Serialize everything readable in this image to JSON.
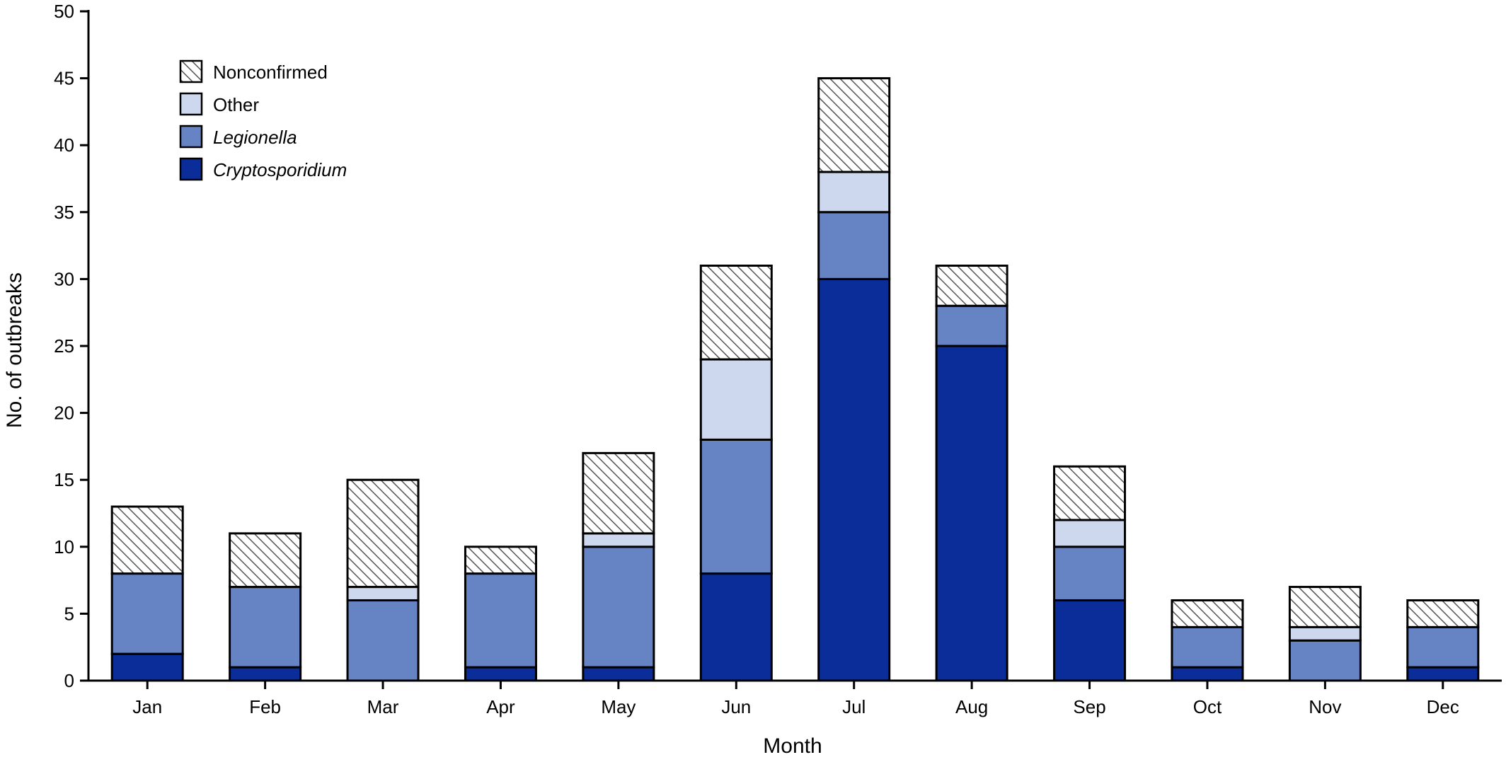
{
  "chart_data": {
    "type": "bar",
    "stacked": true,
    "xlabel": "Month",
    "ylabel": "No. of outbreaks",
    "ylim": [
      0,
      50
    ],
    "yticks": [
      0,
      5,
      10,
      15,
      20,
      25,
      30,
      35,
      40,
      45,
      50
    ],
    "grid": false,
    "legend_position": "top-left",
    "categories": [
      "Jan",
      "Feb",
      "Mar",
      "Apr",
      "May",
      "Jun",
      "Jul",
      "Aug",
      "Sep",
      "Oct",
      "Nov",
      "Dec"
    ],
    "series": [
      {
        "name": "Cryptosporidium",
        "italic": true,
        "color": "#0a2d99",
        "pattern": "solid",
        "values": [
          2,
          1,
          0,
          1,
          1,
          8,
          30,
          25,
          6,
          1,
          0,
          1
        ]
      },
      {
        "name": "Legionella",
        "italic": true,
        "color": "#6683c4",
        "pattern": "solid",
        "values": [
          6,
          6,
          6,
          7,
          9,
          10,
          5,
          3,
          4,
          3,
          3,
          3
        ]
      },
      {
        "name": "Other",
        "italic": false,
        "color": "#cdd8ee",
        "pattern": "solid",
        "values": [
          0,
          0,
          1,
          0,
          1,
          6,
          3,
          0,
          2,
          0,
          1,
          0
        ]
      },
      {
        "name": "Nonconfirmed",
        "italic": false,
        "color": "#ffffff",
        "pattern": "hatch",
        "values": [
          5,
          4,
          8,
          2,
          6,
          7,
          7,
          3,
          4,
          2,
          3,
          2
        ]
      }
    ],
    "legend_order": [
      "Nonconfirmed",
      "Other",
      "Legionella",
      "Cryptosporidium"
    ]
  }
}
